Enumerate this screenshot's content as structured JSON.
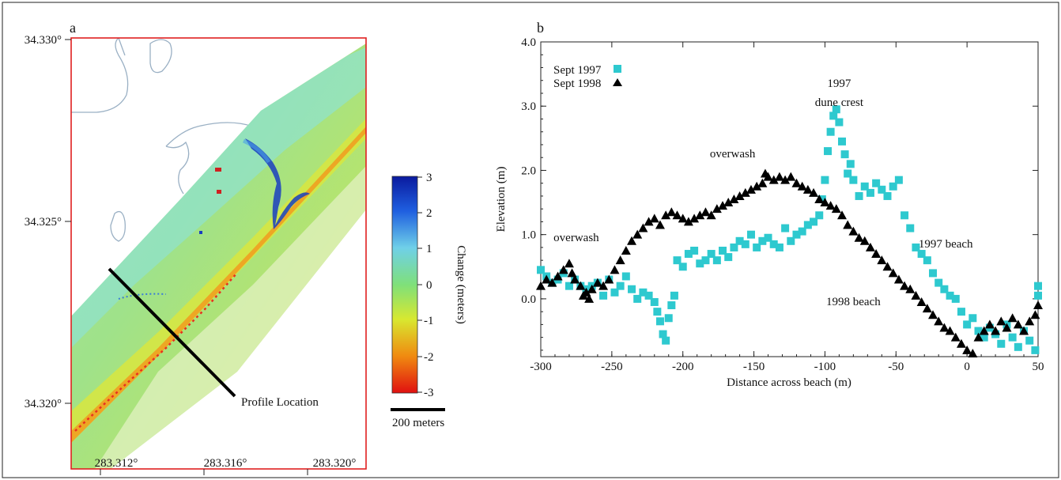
{
  "panel_a": {
    "label": "a",
    "y_ticks": [
      "34.330°",
      "34.325°",
      "34.320°"
    ],
    "x_ticks": [
      "283.312°",
      "283.316°",
      "283.320°"
    ],
    "profile_label": "Profile Location",
    "colorbar": {
      "title": "Change (meters)",
      "ticks": [
        "3",
        "2",
        "1",
        "0",
        "-1",
        "-2",
        "-3"
      ],
      "colors": [
        "#0a1a9e",
        "#1f5fe0",
        "#6fd0e8",
        "#7fe07a",
        "#d8e830",
        "#f08a10",
        "#e01010"
      ]
    },
    "scale_bar_label": "200 meters"
  },
  "chart_data": {
    "type": "scatter",
    "panel_label": "b",
    "xlabel": "Distance across beach (m)",
    "ylabel": "Elevation (m)",
    "xlim": [
      -300,
      50
    ],
    "ylim": [
      -0.9,
      4.0
    ],
    "x_ticks": [
      -300,
      -250,
      -200,
      -150,
      -100,
      -50,
      0,
      50
    ],
    "y_ticks": [
      0.0,
      1.0,
      2.0,
      3.0,
      4.0
    ],
    "x_tick_labels": [
      "-300",
      "-250",
      "-200",
      "-150",
      "-100",
      "-50",
      "0",
      "50"
    ],
    "y_tick_labels": [
      "0.0",
      "1.0",
      "2.0",
      "3.0",
      "4.0"
    ],
    "legend_position": "top-left",
    "series": [
      {
        "name": "Sept 1997",
        "marker": "square",
        "color": "#2ec9cf",
        "points": [
          [
            -300,
            0.45
          ],
          [
            -296,
            0.35
          ],
          [
            -292,
            0.25
          ],
          [
            -288,
            0.3
          ],
          [
            -284,
            0.4
          ],
          [
            -280,
            0.2
          ],
          [
            -276,
            0.3
          ],
          [
            -272,
            0.2
          ],
          [
            -268,
            0.15
          ],
          [
            -264,
            0.2
          ],
          [
            -260,
            0.25
          ],
          [
            -256,
            0.05
          ],
          [
            -252,
            0.3
          ],
          [
            -248,
            0.1
          ],
          [
            -244,
            0.2
          ],
          [
            -240,
            0.35
          ],
          [
            -236,
            0.15
          ],
          [
            -232,
            0.0
          ],
          [
            -228,
            0.1
          ],
          [
            -224,
            0.05
          ],
          [
            -220,
            -0.05
          ],
          [
            -218,
            -0.2
          ],
          [
            -216,
            -0.35
          ],
          [
            -214,
            -0.55
          ],
          [
            -212,
            -0.65
          ],
          [
            -210,
            -0.3
          ],
          [
            -208,
            -0.1
          ],
          [
            -206,
            0.05
          ],
          [
            -204,
            0.6
          ],
          [
            -200,
            0.5
          ],
          [
            -196,
            0.7
          ],
          [
            -192,
            0.75
          ],
          [
            -188,
            0.55
          ],
          [
            -184,
            0.6
          ],
          [
            -180,
            0.7
          ],
          [
            -176,
            0.6
          ],
          [
            -172,
            0.75
          ],
          [
            -168,
            0.65
          ],
          [
            -164,
            0.8
          ],
          [
            -160,
            0.9
          ],
          [
            -156,
            0.85
          ],
          [
            -152,
            1.0
          ],
          [
            -148,
            0.8
          ],
          [
            -144,
            0.9
          ],
          [
            -140,
            0.95
          ],
          [
            -136,
            0.85
          ],
          [
            -132,
            0.8
          ],
          [
            -128,
            1.1
          ],
          [
            -124,
            0.9
          ],
          [
            -120,
            1.0
          ],
          [
            -116,
            1.05
          ],
          [
            -112,
            1.15
          ],
          [
            -108,
            1.2
          ],
          [
            -104,
            1.3
          ],
          [
            -102,
            1.55
          ],
          [
            -100,
            1.85
          ],
          [
            -98,
            2.3
          ],
          [
            -96,
            2.6
          ],
          [
            -94,
            2.85
          ],
          [
            -92,
            2.95
          ],
          [
            -90,
            2.75
          ],
          [
            -88,
            2.45
          ],
          [
            -86,
            2.25
          ],
          [
            -84,
            1.95
          ],
          [
            -82,
            2.1
          ],
          [
            -80,
            1.85
          ],
          [
            -76,
            1.6
          ],
          [
            -72,
            1.75
          ],
          [
            -68,
            1.65
          ],
          [
            -64,
            1.8
          ],
          [
            -60,
            1.7
          ],
          [
            -56,
            1.6
          ],
          [
            -52,
            1.75
          ],
          [
            -48,
            1.85
          ],
          [
            -44,
            1.3
          ],
          [
            -40,
            1.1
          ],
          [
            -36,
            0.8
          ],
          [
            -32,
            0.7
          ],
          [
            -28,
            0.6
          ],
          [
            -24,
            0.4
          ],
          [
            -20,
            0.25
          ],
          [
            -16,
            0.15
          ],
          [
            -12,
            0.05
          ],
          [
            -8,
            0.0
          ],
          [
            -4,
            -0.2
          ],
          [
            0,
            -0.4
          ],
          [
            4,
            -0.3
          ],
          [
            8,
            -0.5
          ],
          [
            12,
            -0.6
          ],
          [
            16,
            -0.45
          ],
          [
            20,
            -0.55
          ],
          [
            24,
            -0.7
          ],
          [
            28,
            -0.4
          ],
          [
            32,
            -0.6
          ],
          [
            36,
            -0.75
          ],
          [
            40,
            -0.5
          ],
          [
            44,
            -0.65
          ],
          [
            48,
            -0.8
          ],
          [
            50,
            0.2
          ],
          [
            50,
            0.05
          ]
        ]
      },
      {
        "name": "Sept 1998",
        "marker": "triangle",
        "color": "#000000",
        "points": [
          [
            -300,
            0.2
          ],
          [
            -296,
            0.3
          ],
          [
            -292,
            0.25
          ],
          [
            -288,
            0.35
          ],
          [
            -284,
            0.45
          ],
          [
            -280,
            0.55
          ],
          [
            -278,
            0.4
          ],
          [
            -276,
            0.3
          ],
          [
            -272,
            0.2
          ],
          [
            -270,
            0.05
          ],
          [
            -268,
            0.1
          ],
          [
            -266,
            0.0
          ],
          [
            -264,
            0.15
          ],
          [
            -260,
            0.25
          ],
          [
            -256,
            0.2
          ],
          [
            -252,
            0.3
          ],
          [
            -248,
            0.45
          ],
          [
            -244,
            0.6
          ],
          [
            -240,
            0.75
          ],
          [
            -236,
            0.9
          ],
          [
            -232,
            1.0
          ],
          [
            -228,
            1.1
          ],
          [
            -224,
            1.2
          ],
          [
            -220,
            1.25
          ],
          [
            -216,
            1.15
          ],
          [
            -212,
            1.3
          ],
          [
            -208,
            1.35
          ],
          [
            -204,
            1.3
          ],
          [
            -200,
            1.25
          ],
          [
            -196,
            1.2
          ],
          [
            -192,
            1.25
          ],
          [
            -188,
            1.3
          ],
          [
            -184,
            1.35
          ],
          [
            -180,
            1.3
          ],
          [
            -176,
            1.4
          ],
          [
            -172,
            1.45
          ],
          [
            -168,
            1.5
          ],
          [
            -164,
            1.55
          ],
          [
            -160,
            1.6
          ],
          [
            -156,
            1.65
          ],
          [
            -152,
            1.7
          ],
          [
            -148,
            1.75
          ],
          [
            -144,
            1.8
          ],
          [
            -142,
            1.95
          ],
          [
            -140,
            1.9
          ],
          [
            -136,
            1.85
          ],
          [
            -132,
            1.9
          ],
          [
            -128,
            1.85
          ],
          [
            -124,
            1.9
          ],
          [
            -120,
            1.8
          ],
          [
            -116,
            1.75
          ],
          [
            -112,
            1.7
          ],
          [
            -108,
            1.65
          ],
          [
            -104,
            1.55
          ],
          [
            -100,
            1.5
          ],
          [
            -96,
            1.45
          ],
          [
            -92,
            1.4
          ],
          [
            -88,
            1.3
          ],
          [
            -84,
            1.15
          ],
          [
            -80,
            1.05
          ],
          [
            -76,
            0.95
          ],
          [
            -72,
            0.9
          ],
          [
            -68,
            0.8
          ],
          [
            -64,
            0.7
          ],
          [
            -60,
            0.6
          ],
          [
            -56,
            0.5
          ],
          [
            -52,
            0.4
          ],
          [
            -48,
            0.3
          ],
          [
            -44,
            0.2
          ],
          [
            -40,
            0.15
          ],
          [
            -36,
            0.05
          ],
          [
            -32,
            -0.05
          ],
          [
            -28,
            -0.15
          ],
          [
            -24,
            -0.25
          ],
          [
            -20,
            -0.35
          ],
          [
            -16,
            -0.45
          ],
          [
            -12,
            -0.5
          ],
          [
            -8,
            -0.6
          ],
          [
            -4,
            -0.7
          ],
          [
            0,
            -0.8
          ],
          [
            4,
            -0.85
          ],
          [
            8,
            -0.6
          ],
          [
            12,
            -0.5
          ],
          [
            16,
            -0.4
          ],
          [
            20,
            -0.5
          ],
          [
            24,
            -0.35
          ],
          [
            28,
            -0.45
          ],
          [
            32,
            -0.3
          ],
          [
            36,
            -0.4
          ],
          [
            40,
            -0.5
          ],
          [
            44,
            -0.35
          ],
          [
            48,
            -0.25
          ],
          [
            50,
            -0.1
          ]
        ]
      }
    ],
    "annotations": [
      {
        "text": "1997",
        "x": -90,
        "y": 3.3
      },
      {
        "text": "dune crest",
        "x": -90,
        "y": 3.0
      },
      {
        "text": "overwash",
        "x": -165,
        "y": 2.2
      },
      {
        "text": "overwash",
        "x": -275,
        "y": 0.9
      },
      {
        "text": "1997 beach",
        "x": -15,
        "y": 0.8
      },
      {
        "text": "1998 beach",
        "x": -80,
        "y": -0.1
      }
    ]
  }
}
